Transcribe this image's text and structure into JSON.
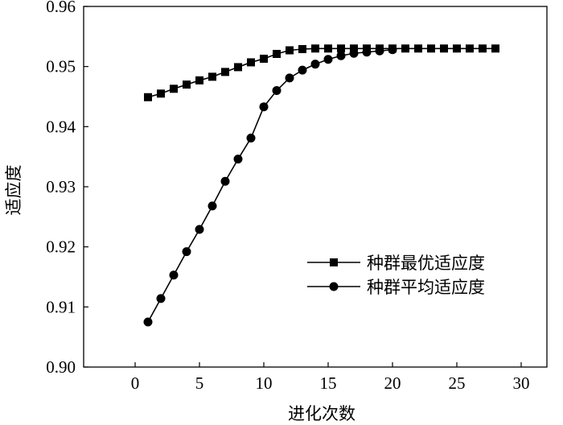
{
  "chart_data": {
    "type": "line",
    "xlabel": "进化次数",
    "ylabel": "适应度",
    "xlim": [
      -4,
      32
    ],
    "ylim": [
      0.9,
      0.96
    ],
    "xticks": [
      0,
      5,
      10,
      15,
      20,
      25,
      30
    ],
    "yticks": [
      0.9,
      0.91,
      0.92,
      0.93,
      0.94,
      0.95,
      0.96
    ],
    "xtick_labels": [
      "0",
      "5",
      "10",
      "15",
      "20",
      "25",
      "30"
    ],
    "ytick_labels": [
      "0.90",
      "0.91",
      "0.92",
      "0.93",
      "0.94",
      "0.95",
      "0.96"
    ],
    "grid": false,
    "legend_position": "right",
    "series": [
      {
        "name": "种群最优适应度",
        "marker": "square",
        "color": "#000000",
        "x": [
          1,
          2,
          3,
          4,
          5,
          6,
          7,
          8,
          9,
          10,
          11,
          12,
          13,
          14,
          15,
          16,
          17,
          18,
          19,
          20,
          21,
          22,
          23,
          24,
          25,
          26,
          27,
          28
        ],
        "y": [
          0.9449,
          0.9455,
          0.9463,
          0.947,
          0.9477,
          0.9483,
          0.9491,
          0.9499,
          0.9507,
          0.9513,
          0.9521,
          0.9527,
          0.9529,
          0.953,
          0.953,
          0.953,
          0.953,
          0.953,
          0.953,
          0.953,
          0.953,
          0.953,
          0.953,
          0.953,
          0.953,
          0.953,
          0.953,
          0.953
        ]
      },
      {
        "name": "种群平均适应度",
        "marker": "circle",
        "color": "#000000",
        "x": [
          1,
          2,
          3,
          4,
          5,
          6,
          7,
          8,
          9,
          10,
          11,
          12,
          13,
          14,
          15,
          16,
          17,
          18,
          19,
          20
        ],
        "y": [
          0.9075,
          0.9114,
          0.9153,
          0.9192,
          0.9229,
          0.9268,
          0.9309,
          0.9346,
          0.9381,
          0.9433,
          0.946,
          0.9481,
          0.9494,
          0.9504,
          0.9512,
          0.9518,
          0.9522,
          0.9524,
          0.9526,
          0.9528
        ]
      }
    ]
  }
}
